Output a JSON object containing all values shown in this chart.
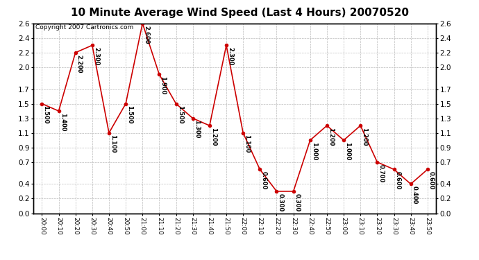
{
  "title": "10 Minute Average Wind Speed (Last 4 Hours) 20070520",
  "copyright": "Copyright 2007 Cartronics.com",
  "x_labels": [
    "20:00",
    "20:10",
    "20:20",
    "20:30",
    "20:40",
    "20:50",
    "21:00",
    "21:10",
    "21:20",
    "21:30",
    "21:40",
    "21:50",
    "22:00",
    "22:10",
    "22:20",
    "22:30",
    "22:40",
    "22:50",
    "23:00",
    "23:10",
    "23:20",
    "23:30",
    "23:40",
    "23:50"
  ],
  "y_values": [
    1.5,
    1.4,
    2.2,
    2.3,
    1.1,
    1.5,
    2.6,
    1.9,
    1.5,
    1.3,
    1.2,
    2.3,
    1.1,
    0.6,
    0.3,
    0.3,
    1.0,
    1.2,
    1.0,
    1.2,
    0.7,
    0.6,
    0.4,
    0.6
  ],
  "line_color": "#cc0000",
  "marker_color": "#cc0000",
  "background_color": "#ffffff",
  "plot_bg_color": "#ffffff",
  "grid_color": "#bbbbbb",
  "yticks": [
    0.0,
    0.2,
    0.4,
    0.7,
    0.9,
    1.1,
    1.3,
    1.5,
    1.7,
    2.0,
    2.2,
    2.4,
    2.6
  ],
  "ylim": [
    0.0,
    2.6
  ],
  "title_fontsize": 11,
  "copyright_fontsize": 6.5,
  "label_fontsize": 6.0
}
